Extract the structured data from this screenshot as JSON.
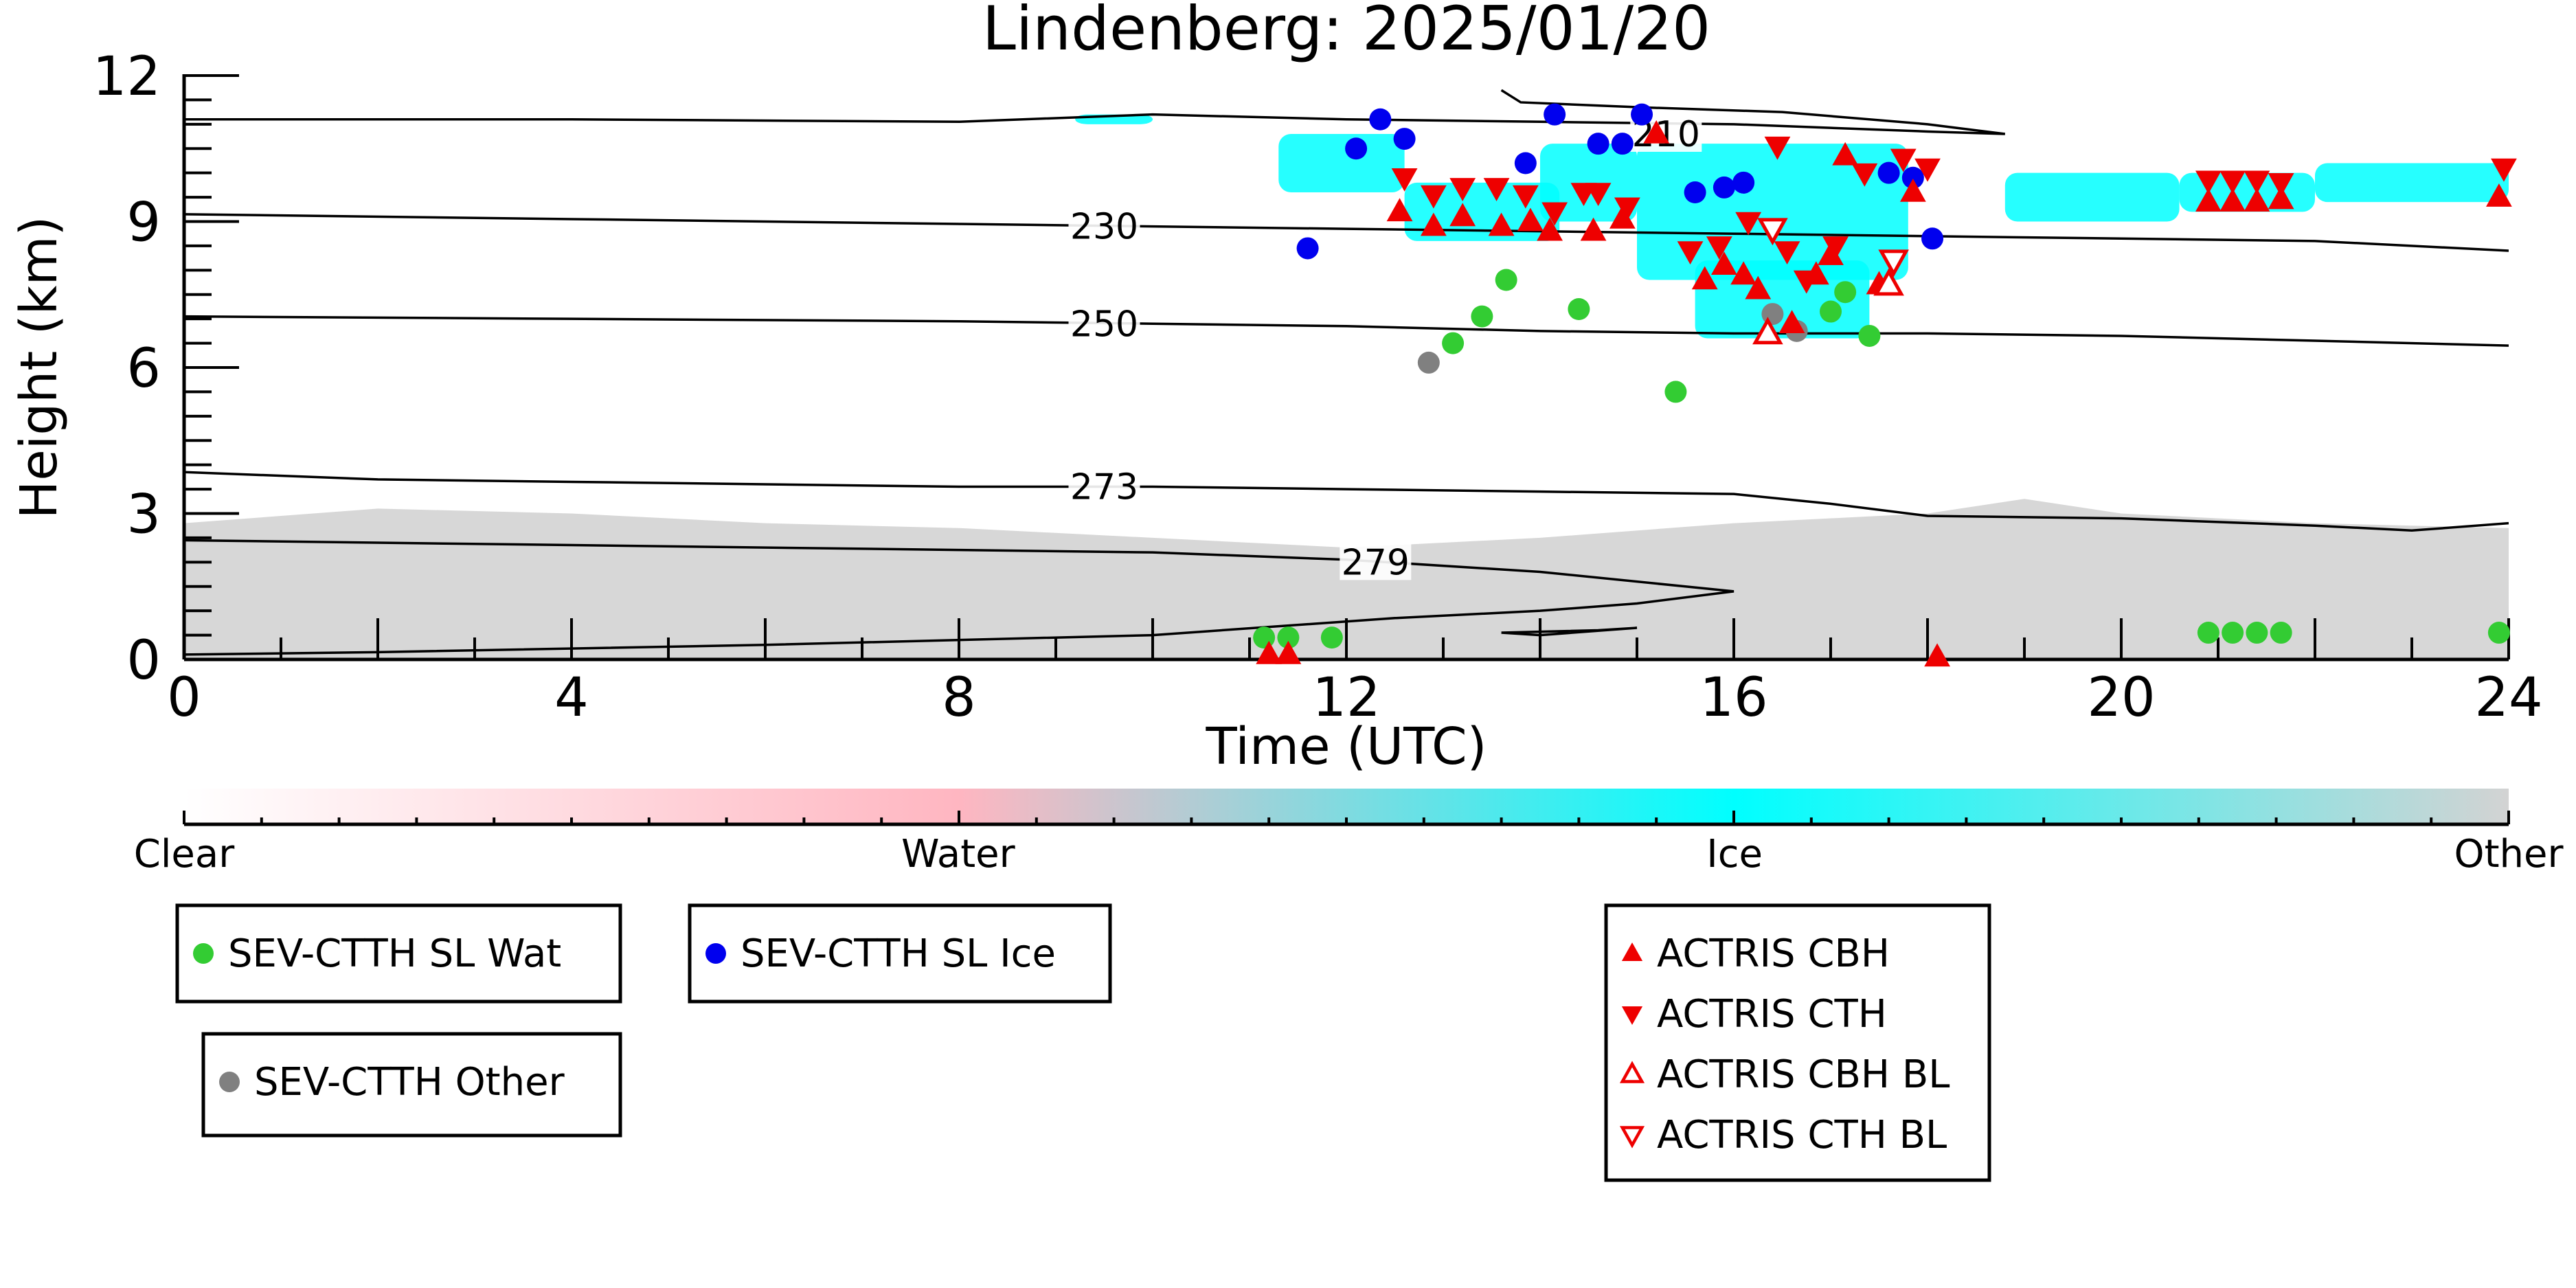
{
  "chart_data": {
    "type": "scatter",
    "title": "Lindenberg: 2025/01/20",
    "xlabel": "Time (UTC)",
    "ylabel": "Height (km)",
    "xlim": [
      0,
      24
    ],
    "ylim": [
      0,
      12
    ],
    "xticks": [
      0,
      4,
      8,
      12,
      16,
      20,
      24
    ],
    "yticks": [
      0,
      3,
      6,
      9,
      12
    ],
    "grid": false,
    "colorbar": {
      "labels": [
        {
          "text": "Clear",
          "pos": 0.0
        },
        {
          "text": "Water",
          "pos": 0.333
        },
        {
          "text": "Ice",
          "pos": 0.667
        },
        {
          "text": "Other",
          "pos": 1.0
        }
      ],
      "colors": {
        "clear": "#ffffff",
        "water": "#ffb6c1",
        "ice": "#00ffff",
        "other": "#d3d3d3"
      }
    },
    "background_regions": [
      {
        "class": "other",
        "color": "#d3d3d3",
        "top": [
          [
            0,
            2.8
          ],
          [
            2,
            3.1
          ],
          [
            4,
            3.0
          ],
          [
            6,
            2.8
          ],
          [
            8,
            2.7
          ],
          [
            10,
            2.5
          ],
          [
            12,
            2.3
          ],
          [
            14,
            2.5
          ],
          [
            16,
            2.8
          ],
          [
            18,
            3.0
          ],
          [
            19,
            3.3
          ],
          [
            20,
            3.0
          ],
          [
            22,
            2.8
          ],
          [
            24,
            2.7
          ]
        ]
      },
      {
        "class": "ice",
        "color": "#00ffff",
        "patches": [
          {
            "x": [
              9.2,
              10.0
            ],
            "y": [
              11.0,
              11.2
            ]
          },
          {
            "x": [
              11.3,
              12.6
            ],
            "y": [
              9.6,
              10.8
            ]
          },
          {
            "x": [
              12.6,
              14.2
            ],
            "y": [
              8.6,
              9.8
            ]
          },
          {
            "x": [
              14.0,
              15.0
            ],
            "y": [
              9.0,
              10.6
            ]
          },
          {
            "x": [
              15.0,
              17.8
            ],
            "y": [
              7.8,
              10.6
            ]
          },
          {
            "x": [
              15.6,
              17.4
            ],
            "y": [
              6.6,
              8.2
            ]
          },
          {
            "x": [
              18.8,
              20.6
            ],
            "y": [
              9.0,
              10.0
            ]
          },
          {
            "x": [
              20.6,
              22.0
            ],
            "y": [
              9.2,
              10.0
            ]
          },
          {
            "x": [
              22.0,
              24.0
            ],
            "y": [
              9.4,
              10.2
            ]
          }
        ]
      }
    ],
    "contours": [
      {
        "label": "210",
        "label_at": [
          15.3,
          10.8
        ],
        "points": [
          [
            0,
            11.1
          ],
          [
            4,
            11.1
          ],
          [
            8,
            11.05
          ],
          [
            10,
            11.2
          ],
          [
            12,
            11.1
          ],
          [
            14,
            11.05
          ],
          [
            16,
            11.0
          ],
          [
            18,
            10.85
          ],
          [
            18.8,
            10.8
          ],
          [
            18,
            11.0
          ],
          [
            16.5,
            11.25
          ],
          [
            15,
            11.35
          ],
          [
            13.8,
            11.45
          ],
          [
            13.6,
            11.7
          ]
        ]
      },
      {
        "label": "230",
        "label_at": [
          9.5,
          8.9
        ],
        "points": [
          [
            0,
            9.15
          ],
          [
            4,
            9.05
          ],
          [
            8,
            8.95
          ],
          [
            10,
            8.9
          ],
          [
            12,
            8.85
          ],
          [
            14,
            8.8
          ],
          [
            16,
            8.75
          ],
          [
            18,
            8.7
          ],
          [
            20,
            8.65
          ],
          [
            22,
            8.6
          ],
          [
            24,
            8.4
          ]
        ]
      },
      {
        "label": "250",
        "label_at": [
          9.5,
          6.9
        ],
        "points": [
          [
            0,
            7.05
          ],
          [
            4,
            7.0
          ],
          [
            8,
            6.95
          ],
          [
            10,
            6.9
          ],
          [
            12,
            6.85
          ],
          [
            14,
            6.75
          ],
          [
            16,
            6.7
          ],
          [
            18,
            6.7
          ],
          [
            20,
            6.65
          ],
          [
            22,
            6.55
          ],
          [
            24,
            6.45
          ]
        ]
      },
      {
        "label": "273",
        "label_at": [
          9.5,
          3.55
        ],
        "points": [
          [
            0,
            3.85
          ],
          [
            2,
            3.7
          ],
          [
            4,
            3.65
          ],
          [
            6,
            3.6
          ],
          [
            8,
            3.55
          ],
          [
            10,
            3.55
          ],
          [
            12,
            3.5
          ],
          [
            14,
            3.45
          ],
          [
            16,
            3.4
          ],
          [
            17,
            3.2
          ],
          [
            18,
            2.95
          ],
          [
            20,
            2.9
          ],
          [
            22,
            2.75
          ],
          [
            23,
            2.65
          ],
          [
            24,
            2.8
          ]
        ]
      },
      {
        "label": "279",
        "label_at": [
          12.3,
          2.0
        ],
        "points": [
          [
            0,
            2.45
          ],
          [
            4,
            2.35
          ],
          [
            8,
            2.25
          ],
          [
            10,
            2.2
          ],
          [
            12,
            2.05
          ],
          [
            14,
            1.8
          ],
          [
            15.5,
            1.5
          ],
          [
            16.0,
            1.4
          ],
          [
            15.0,
            1.15
          ],
          [
            14.0,
            1.0
          ],
          [
            12.5,
            0.85
          ],
          [
            10.0,
            0.5
          ],
          [
            6.0,
            0.3
          ],
          [
            2.0,
            0.15
          ],
          [
            0,
            0.1
          ]
        ]
      },
      {
        "label": "",
        "label_at": null,
        "points": [
          [
            13.6,
            0.55
          ],
          [
            14.6,
            0.6
          ],
          [
            15.0,
            0.65
          ],
          [
            14.0,
            0.5
          ],
          [
            13.6,
            0.55
          ]
        ]
      }
    ],
    "series": [
      {
        "name": "SEV-CTTH SL Wat",
        "color": "#33cc33",
        "marker": "circle",
        "points": [
          [
            11.15,
            0.45
          ],
          [
            11.4,
            0.45
          ],
          [
            11.85,
            0.45
          ],
          [
            13.1,
            6.5
          ],
          [
            13.4,
            7.05
          ],
          [
            13.65,
            7.8
          ],
          [
            14.4,
            7.2
          ],
          [
            15.4,
            5.5
          ],
          [
            17.0,
            7.15
          ],
          [
            17.15,
            7.55
          ],
          [
            17.4,
            6.65
          ],
          [
            20.9,
            0.55
          ],
          [
            21.15,
            0.55
          ],
          [
            21.4,
            0.55
          ],
          [
            21.65,
            0.55
          ],
          [
            23.9,
            0.55
          ]
        ]
      },
      {
        "name": "SEV-CTTH SL Ice",
        "color": "#0000ee",
        "marker": "circle",
        "points": [
          [
            11.6,
            8.45
          ],
          [
            12.1,
            10.5
          ],
          [
            12.35,
            11.1
          ],
          [
            12.6,
            10.7
          ],
          [
            13.85,
            10.2
          ],
          [
            14.15,
            11.2
          ],
          [
            14.6,
            10.6
          ],
          [
            14.85,
            10.6
          ],
          [
            15.05,
            11.2
          ],
          [
            15.6,
            9.6
          ],
          [
            15.9,
            9.7
          ],
          [
            16.1,
            9.8
          ],
          [
            17.6,
            10.0
          ],
          [
            17.85,
            9.9
          ],
          [
            18.05,
            8.65
          ]
        ]
      },
      {
        "name": "SEV-CTTH Other",
        "color": "#808080",
        "marker": "circle",
        "points": [
          [
            12.85,
            6.1
          ],
          [
            16.4,
            7.1
          ],
          [
            16.65,
            6.75
          ]
        ]
      }
    ],
    "actris": [
      {
        "name": "ACTRIS CBH",
        "color": "#ee0000",
        "marker": "triangle-up",
        "filled": true,
        "points": [
          [
            11.2,
            0.1
          ],
          [
            11.4,
            0.1
          ],
          [
            12.55,
            9.2
          ],
          [
            12.9,
            8.9
          ],
          [
            13.2,
            9.1
          ],
          [
            13.6,
            8.9
          ],
          [
            13.9,
            9.0
          ],
          [
            14.1,
            8.8
          ],
          [
            14.55,
            8.8
          ],
          [
            14.85,
            9.05
          ],
          [
            15.2,
            10.8
          ],
          [
            15.7,
            7.8
          ],
          [
            15.9,
            8.1
          ],
          [
            16.1,
            7.9
          ],
          [
            16.25,
            7.6
          ],
          [
            16.6,
            6.9
          ],
          [
            16.85,
            7.9
          ],
          [
            17.0,
            8.3
          ],
          [
            17.15,
            10.35
          ],
          [
            17.5,
            7.7
          ],
          [
            17.85,
            9.6
          ],
          [
            18.1,
            0.05
          ],
          [
            20.9,
            9.4
          ],
          [
            21.15,
            9.4
          ],
          [
            21.4,
            9.4
          ],
          [
            21.65,
            9.45
          ],
          [
            23.9,
            9.5
          ]
        ]
      },
      {
        "name": "ACTRIS CTH",
        "color": "#ee0000",
        "marker": "triangle-down",
        "filled": true,
        "points": [
          [
            12.6,
            9.9
          ],
          [
            12.9,
            9.55
          ],
          [
            13.2,
            9.7
          ],
          [
            13.55,
            9.7
          ],
          [
            13.85,
            9.55
          ],
          [
            14.15,
            9.2
          ],
          [
            14.45,
            9.6
          ],
          [
            14.6,
            9.6
          ],
          [
            14.9,
            9.3
          ],
          [
            15.55,
            8.4
          ],
          [
            15.85,
            8.5
          ],
          [
            16.15,
            9.0
          ],
          [
            16.45,
            10.55
          ],
          [
            16.55,
            8.4
          ],
          [
            16.75,
            7.8
          ],
          [
            17.05,
            8.5
          ],
          [
            17.35,
            10.0
          ],
          [
            17.75,
            10.3
          ],
          [
            18.0,
            10.1
          ],
          [
            20.9,
            9.85
          ],
          [
            21.15,
            9.85
          ],
          [
            21.4,
            9.85
          ],
          [
            21.65,
            9.8
          ],
          [
            23.95,
            10.1
          ]
        ]
      },
      {
        "name": "ACTRIS CBH BL",
        "color": "#ee0000",
        "marker": "triangle-up",
        "filled": false,
        "points": [
          [
            16.35,
            6.7
          ],
          [
            17.6,
            7.7
          ]
        ]
      },
      {
        "name": "ACTRIS CTH BL",
        "color": "#ee0000",
        "marker": "triangle-down",
        "filled": false,
        "points": [
          [
            16.4,
            8.85
          ],
          [
            17.65,
            8.2
          ]
        ]
      }
    ],
    "legend": {
      "box1": [
        "SEV-CTTH SL Wat"
      ],
      "box2": [
        "SEV-CTTH SL Ice"
      ],
      "box3": [
        "SEV-CTTH Other"
      ],
      "box4": [
        "ACTRIS CBH",
        "ACTRIS CTH",
        "ACTRIS CBH BL",
        "ACTRIS CTH BL"
      ]
    }
  }
}
